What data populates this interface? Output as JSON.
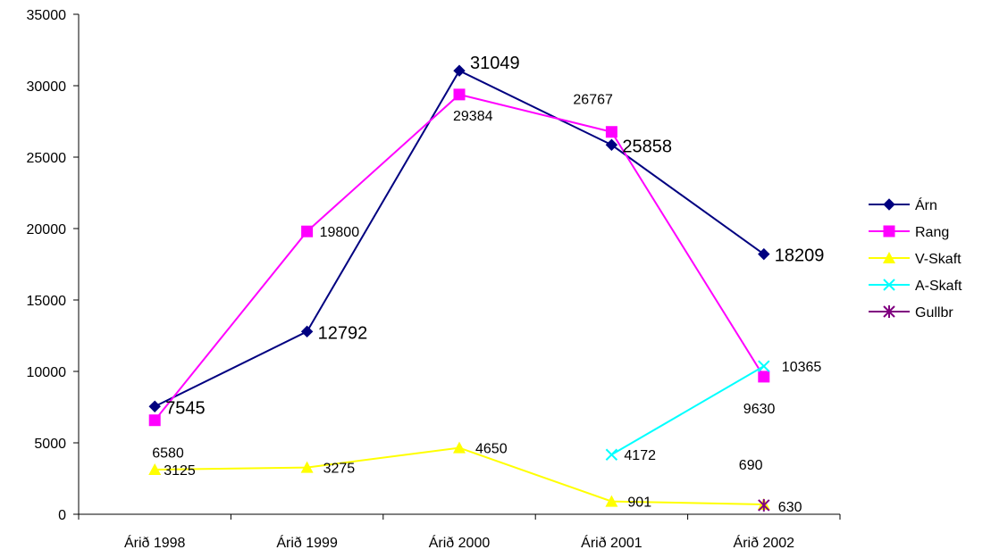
{
  "chart_data": {
    "type": "line",
    "categories": [
      "Árið 1998",
      "Árið 1999",
      "Árið 2000",
      "Árið 2001",
      "Árið 2002"
    ],
    "ylim": [
      0,
      35000
    ],
    "yticks": [
      0,
      5000,
      10000,
      15000,
      20000,
      25000,
      30000,
      35000
    ],
    "grid": false,
    "legend_position": "right",
    "series": [
      {
        "name": "Árn",
        "color": "#000080",
        "marker": "diamond",
        "values": [
          7545,
          12792,
          31049,
          25858,
          18209
        ]
      },
      {
        "name": "Rang",
        "color": "#FF00FF",
        "marker": "square",
        "values": [
          6580,
          19800,
          29384,
          26767,
          9630
        ]
      },
      {
        "name": "V-Skaft",
        "color": "#FFFF00",
        "marker": "triangle",
        "values": [
          3125,
          3275,
          4650,
          901,
          690
        ]
      },
      {
        "name": "A-Skaft",
        "color": "#00FFFF",
        "marker": "x",
        "values": [
          null,
          null,
          null,
          4172,
          10365
        ]
      },
      {
        "name": "Gullbr",
        "color": "#800080",
        "marker": "star",
        "values": [
          null,
          null,
          null,
          null,
          630
        ]
      }
    ]
  }
}
